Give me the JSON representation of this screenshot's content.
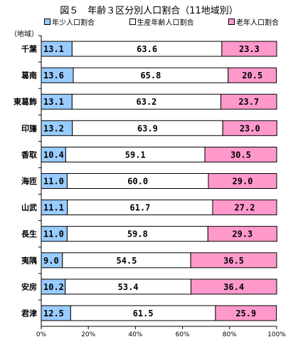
{
  "chart_data": {
    "type": "bar",
    "orientation": "horizontal-stacked-percent",
    "title": "図５　年齢３区分別人口割合（11地域別）",
    "category_header": "（地域）",
    "categories": [
      "千葉",
      "葛南",
      "東葛飾",
      "印旛",
      "香取",
      "海匝",
      "山武",
      "長生",
      "夷隅",
      "安房",
      "君津"
    ],
    "series": [
      {
        "name": "年少人口割合",
        "color": "#99ccff",
        "values": [
          13.1,
          13.6,
          13.1,
          13.2,
          10.4,
          11.0,
          11.1,
          11.0,
          9.0,
          10.2,
          12.5
        ]
      },
      {
        "name": "生産年齢人口割合",
        "color": "#ffffff",
        "values": [
          63.6,
          65.8,
          63.2,
          63.9,
          59.1,
          60.0,
          61.7,
          59.8,
          54.5,
          53.4,
          61.5
        ]
      },
      {
        "name": "老年人口割合",
        "color": "#ff99cc",
        "values": [
          23.3,
          20.5,
          23.7,
          23.0,
          30.5,
          29.0,
          27.2,
          29.3,
          36.5,
          36.4,
          25.9
        ]
      }
    ],
    "xticks": [
      "0%",
      "20%",
      "40%",
      "60%",
      "80%",
      "100%"
    ],
    "xlim": [
      0,
      100
    ],
    "legend_position": "top",
    "grid": false
  }
}
